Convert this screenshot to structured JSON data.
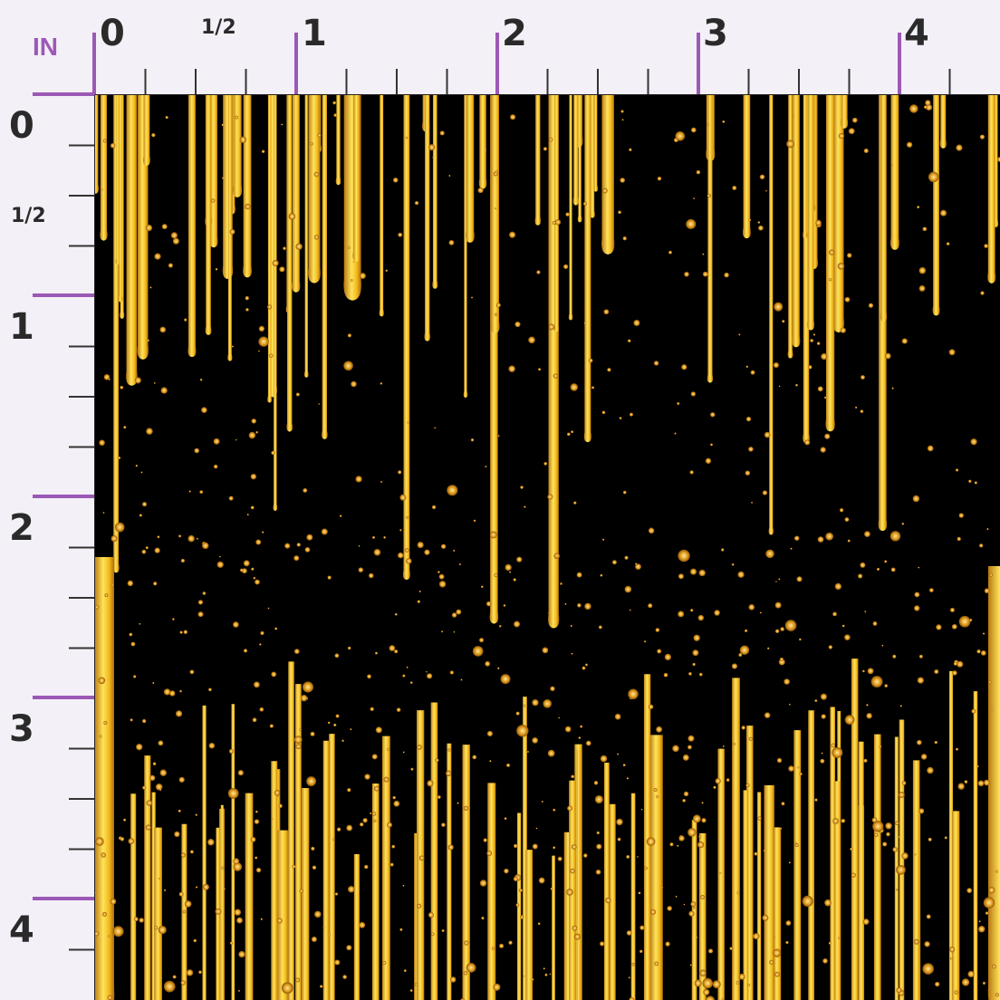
{
  "ruler": {
    "unit_label": "IN",
    "top_labels": [
      "0",
      "1/2",
      "1",
      "2",
      "3",
      "4"
    ],
    "left_labels": [
      "0",
      "1/2",
      "1",
      "2",
      "3",
      "4"
    ]
  },
  "pattern": {
    "description_colors": {
      "background": "#000000",
      "gold_light": "#ffe35a",
      "gold_mid": "#f2b81c",
      "gold_dark": "#b8770f",
      "accent_purple": "#9b59b6"
    }
  }
}
